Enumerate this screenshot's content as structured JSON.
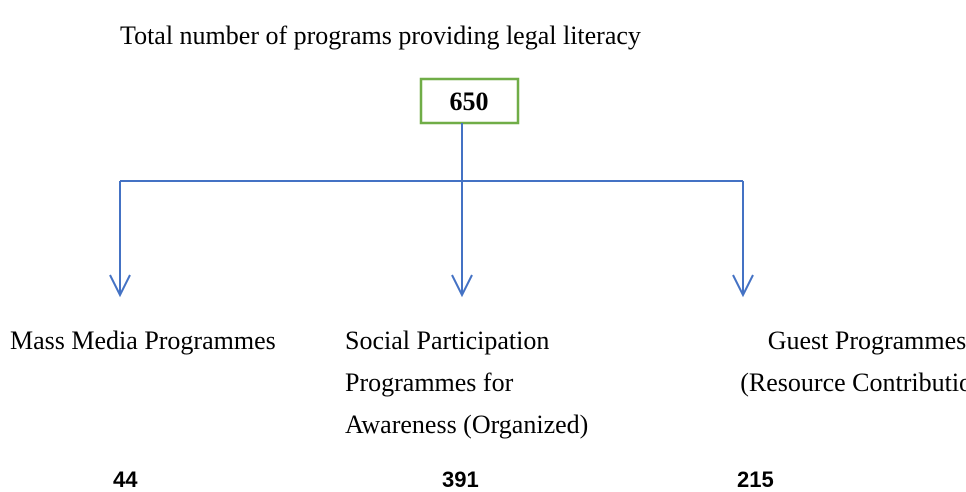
{
  "title": "Total number of programs providing legal literacy",
  "root": {
    "value": 650
  },
  "nodes": [
    {
      "label_lines": [
        "Mass Media Programmes"
      ],
      "value": 44
    },
    {
      "label_lines": [
        "Social Participation",
        "Programmes for",
        "Awareness (Organized)"
      ],
      "value": 391
    },
    {
      "label_lines": [
        "Guest Programmes",
        "(Resource Contribution)"
      ],
      "value": 215
    }
  ]
}
